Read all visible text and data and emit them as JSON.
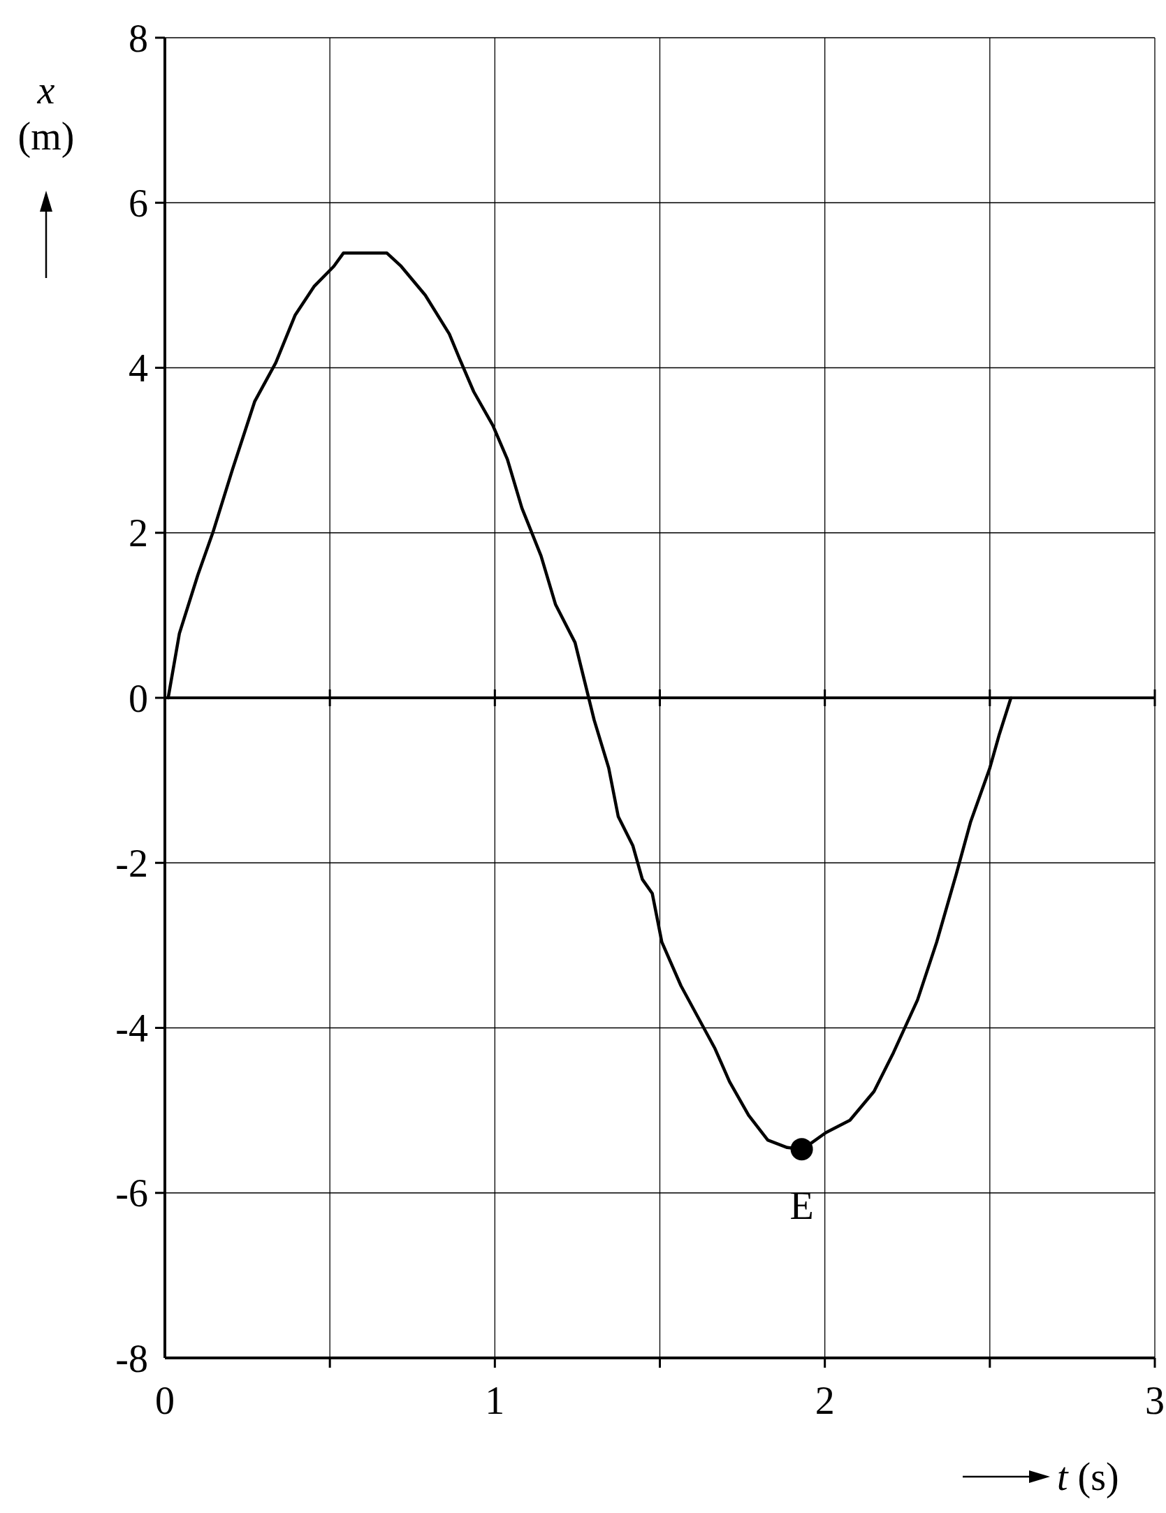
{
  "chart_data": {
    "type": "line",
    "xlabel": "t (s)",
    "ylabel": "x (m)",
    "xlim": [
      0,
      3
    ],
    "ylim": [
      -8,
      8
    ],
    "xticks": [
      0,
      {
        "value": 0.5,
        "label": null
      },
      1,
      {
        "value": 1.5,
        "label": null
      },
      2,
      {
        "value": 2.5,
        "label": null
      },
      3
    ],
    "yticks": [
      -8,
      -6,
      -4,
      -2,
      0,
      2,
      4,
      6,
      8
    ],
    "grid": true,
    "marker": "none",
    "line_style": "solid",
    "ref_lines": [
      {
        "axis": "y",
        "value": 0,
        "color": "#000000"
      }
    ],
    "annotations": [
      {
        "text": "E",
        "x": 1.93,
        "y": -5.47
      }
    ],
    "series": [
      {
        "color": "#000000",
        "x": [
          0.01,
          0.044,
          0.1,
          0.146,
          0.205,
          0.272,
          0.336,
          0.395,
          0.453,
          0.512,
          0.541,
          0.673,
          0.716,
          0.789,
          0.862,
          0.892,
          0.936,
          0.994,
          1.038,
          1.082,
          1.14,
          1.184,
          1.243,
          1.272,
          1.301,
          1.345,
          1.374,
          1.418,
          1.447,
          1.477,
          1.506,
          1.564,
          1.667,
          1.711,
          1.769,
          1.827,
          1.886,
          1.933,
          2.003,
          2.076,
          2.149,
          2.208,
          2.281,
          2.339,
          2.398,
          2.442,
          2.5,
          2.529,
          2.564
        ],
        "values": [
          0,
          0.78,
          1.49,
          2.01,
          2.77,
          3.59,
          4.06,
          4.64,
          4.99,
          5.23,
          5.39,
          5.39,
          5.23,
          4.88,
          4.41,
          4.12,
          3.71,
          3.3,
          2.89,
          2.3,
          1.72,
          1.13,
          0.67,
          0.2,
          -0.27,
          -0.85,
          -1.44,
          -1.79,
          -2.2,
          -2.37,
          -2.96,
          -3.49,
          -4.25,
          -4.65,
          -5.06,
          -5.36,
          -5.45,
          -5.47,
          -5.27,
          -5.12,
          -4.77,
          -4.3,
          -3.66,
          -2.96,
          -2.14,
          -1.5,
          -0.85,
          -0.44,
          0
        ]
      },
      {
        "type": "scatter",
        "marker": "circle",
        "color": "#000000",
        "x": [
          1.93
        ],
        "values": [
          -5.47
        ]
      }
    ]
  }
}
